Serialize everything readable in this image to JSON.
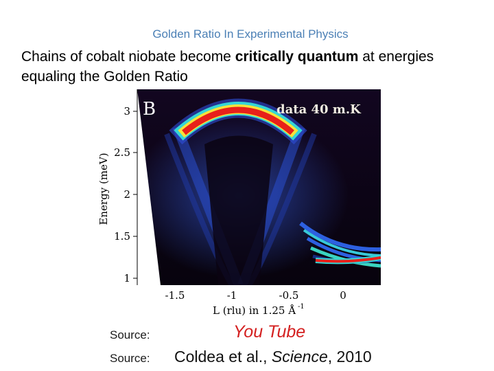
{
  "header": {
    "title": "Golden Ratio In Experimental Physics",
    "subtitle_part1": "Chains of  cobalt niobate become ",
    "subtitle_bold": "critically quantum",
    "subtitle_part2": " at energies",
    "subtitle_line2": "equaling the Golden Ratio"
  },
  "figure": {
    "panel_label": "B",
    "data_label": "data 40 m.K",
    "ylabel": "Energy (meV)",
    "xlabel": "L (rlu) in 1.25 Å",
    "xlabel_sup": "-1",
    "yticks": [
      "3",
      "2.5",
      "2",
      "1.5",
      "1"
    ],
    "xticks": [
      "-1.5",
      "-1",
      "-0.5",
      "0"
    ],
    "colors": {
      "background": "#0d0416",
      "band_red": "#e8201a",
      "band_yellow": "#f7e23a",
      "band_cyan": "#35d6d6",
      "band_blue": "#3158d8"
    }
  },
  "sources": {
    "label1": "Source:",
    "value1": "You Tube",
    "label2": "Source:",
    "cite_authors": "Coldea et al., ",
    "cite_journal": "Science",
    "cite_year": ", 2010"
  }
}
